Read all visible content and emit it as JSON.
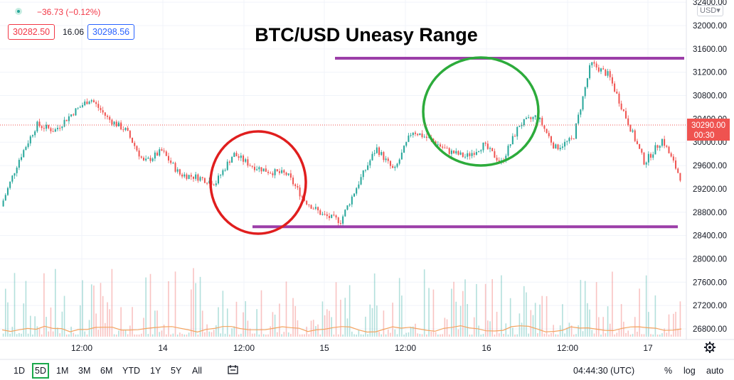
{
  "header": {
    "change": "−36.73 (−0.12%)",
    "bid": "30282.50",
    "spread": "16.06",
    "ask": "30298.56",
    "currency": "USD",
    "currency_suffix": "▾"
  },
  "last_price": {
    "value": "30290.00",
    "countdown": "00:30"
  },
  "bottom_bar": {
    "timeframes": [
      "1D",
      "5D",
      "1M",
      "3M",
      "6M",
      "YTD",
      "1Y",
      "5Y",
      "All"
    ],
    "active": "5D",
    "time": "04:44:30 (UTC)",
    "percent_label": "%",
    "log_label": "log",
    "auto_label": "auto"
  },
  "colors": {
    "up": "#26a69a",
    "down": "#ef5350",
    "range_line": "#9c3ea8",
    "red_circle": "#e01e1e",
    "green_circle": "#2cab3b",
    "bid": "#f23645",
    "ask": "#2962ff"
  },
  "icons": [
    "settings-gear-icon",
    "compare-icon",
    "status-dot-icon"
  ],
  "chart_data": {
    "type": "candlestick",
    "title": "BTC/USD Uneasy Range",
    "y_ticks": [
      "32400.00",
      "32000.00",
      "31600.00",
      "31200.00",
      "30800.00",
      "30400.00",
      "30000.00",
      "29600.00",
      "29200.00",
      "28800.00",
      "28400.00",
      "28000.00",
      "27600.00",
      "27200.00",
      "26800.00"
    ],
    "x_ticks": [
      "12:00",
      "14",
      "12:00",
      "15",
      "12:00",
      "16",
      "12:00",
      "17"
    ],
    "ylim": [
      26500,
      32450
    ],
    "x": [
      0,
      3,
      6,
      9,
      12,
      15,
      18,
      21,
      24,
      27,
      30,
      33,
      36,
      39,
      42,
      45,
      48,
      51,
      54,
      57,
      60,
      63,
      66,
      69,
      72,
      75,
      78,
      81,
      84,
      87,
      90,
      93,
      96,
      99,
      102,
      105,
      108,
      111,
      114
    ],
    "close": [
      28900,
      29700,
      30300,
      30200,
      30500,
      30750,
      30400,
      30200,
      29650,
      29850,
      29450,
      29400,
      29300,
      29800,
      29600,
      29500,
      29450,
      29000,
      28750,
      28650,
      29300,
      29900,
      29500,
      30200,
      30050,
      29850,
      29750,
      29950,
      29650,
      30300,
      30450,
      29900,
      30050,
      31350,
      31150,
      30400,
      29650,
      30050,
      29400
    ],
    "reference_lines": [
      {
        "label": "range high",
        "y": 31440
      },
      {
        "label": "range low",
        "y": 28550
      }
    ],
    "grid": true,
    "annotations": [
      "red circle around range low",
      "green circle around range high"
    ]
  }
}
